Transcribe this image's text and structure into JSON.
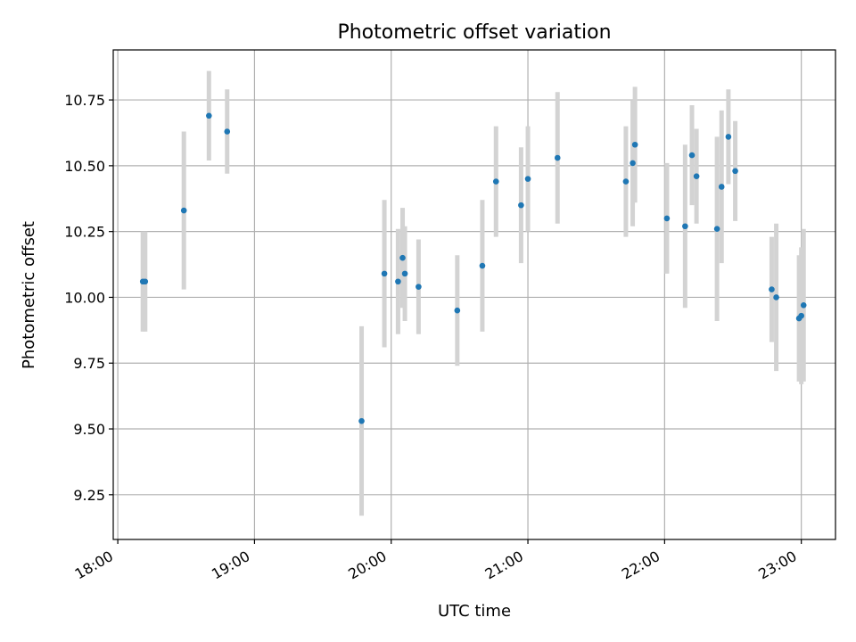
{
  "chart_data": {
    "type": "scatter",
    "title": "Photometric offset variation",
    "xlabel": "UTC time",
    "ylabel": "Photometric offset",
    "x_ticks": [
      "18:00",
      "19:00",
      "20:00",
      "21:00",
      "22:00",
      "23:00"
    ],
    "y_ticks": [
      "9.25",
      "9.50",
      "9.75",
      "10.00",
      "10.25",
      "10.50",
      "10.75"
    ],
    "xlim": [
      "17:58",
      "23:15"
    ],
    "ylim": [
      9.08,
      10.94
    ],
    "grid": true,
    "marker_color": "#1f77b4",
    "errorbar_color": "#d3d3d3",
    "points": [
      {
        "time": "18:11",
        "y": 10.06,
        "err": 0.19
      },
      {
        "time": "18:12",
        "y": 10.06,
        "err": 0.19
      },
      {
        "time": "18:29",
        "y": 10.33,
        "err": 0.3
      },
      {
        "time": "18:40",
        "y": 10.69,
        "err": 0.17
      },
      {
        "time": "18:48",
        "y": 10.63,
        "err": 0.16
      },
      {
        "time": "19:47",
        "y": 9.53,
        "err": 0.36
      },
      {
        "time": "19:57",
        "y": 10.09,
        "err": 0.28
      },
      {
        "time": "20:03",
        "y": 10.06,
        "err": 0.2
      },
      {
        "time": "20:05",
        "y": 10.15,
        "err": 0.19
      },
      {
        "time": "20:06",
        "y": 10.09,
        "err": 0.18
      },
      {
        "time": "20:12",
        "y": 10.04,
        "err": 0.18
      },
      {
        "time": "20:29",
        "y": 9.95,
        "err": 0.21
      },
      {
        "time": "20:40",
        "y": 10.12,
        "err": 0.25
      },
      {
        "time": "20:46",
        "y": 10.44,
        "err": 0.21
      },
      {
        "time": "20:57",
        "y": 10.35,
        "err": 0.22
      },
      {
        "time": "21:00",
        "y": 10.45,
        "err": 0.2
      },
      {
        "time": "21:13",
        "y": 10.53,
        "err": 0.25
      },
      {
        "time": "21:43",
        "y": 10.44,
        "err": 0.21
      },
      {
        "time": "21:46",
        "y": 10.51,
        "err": 0.24
      },
      {
        "time": "21:47",
        "y": 10.58,
        "err": 0.22
      },
      {
        "time": "22:01",
        "y": 10.3,
        "err": 0.21
      },
      {
        "time": "22:09",
        "y": 10.27,
        "err": 0.31
      },
      {
        "time": "22:12",
        "y": 10.54,
        "err": 0.19
      },
      {
        "time": "22:14",
        "y": 10.46,
        "err": 0.18
      },
      {
        "time": "22:23",
        "y": 10.26,
        "err": 0.35
      },
      {
        "time": "22:25",
        "y": 10.42,
        "err": 0.29
      },
      {
        "time": "22:28",
        "y": 10.61,
        "err": 0.18
      },
      {
        "time": "22:31",
        "y": 10.48,
        "err": 0.19
      },
      {
        "time": "22:47",
        "y": 10.03,
        "err": 0.2
      },
      {
        "time": "22:49",
        "y": 10.0,
        "err": 0.28
      },
      {
        "time": "22:59",
        "y": 9.92,
        "err": 0.24
      },
      {
        "time": "23:00",
        "y": 9.93,
        "err": 0.26
      },
      {
        "time": "23:01",
        "y": 9.97,
        "err": 0.29
      }
    ]
  }
}
